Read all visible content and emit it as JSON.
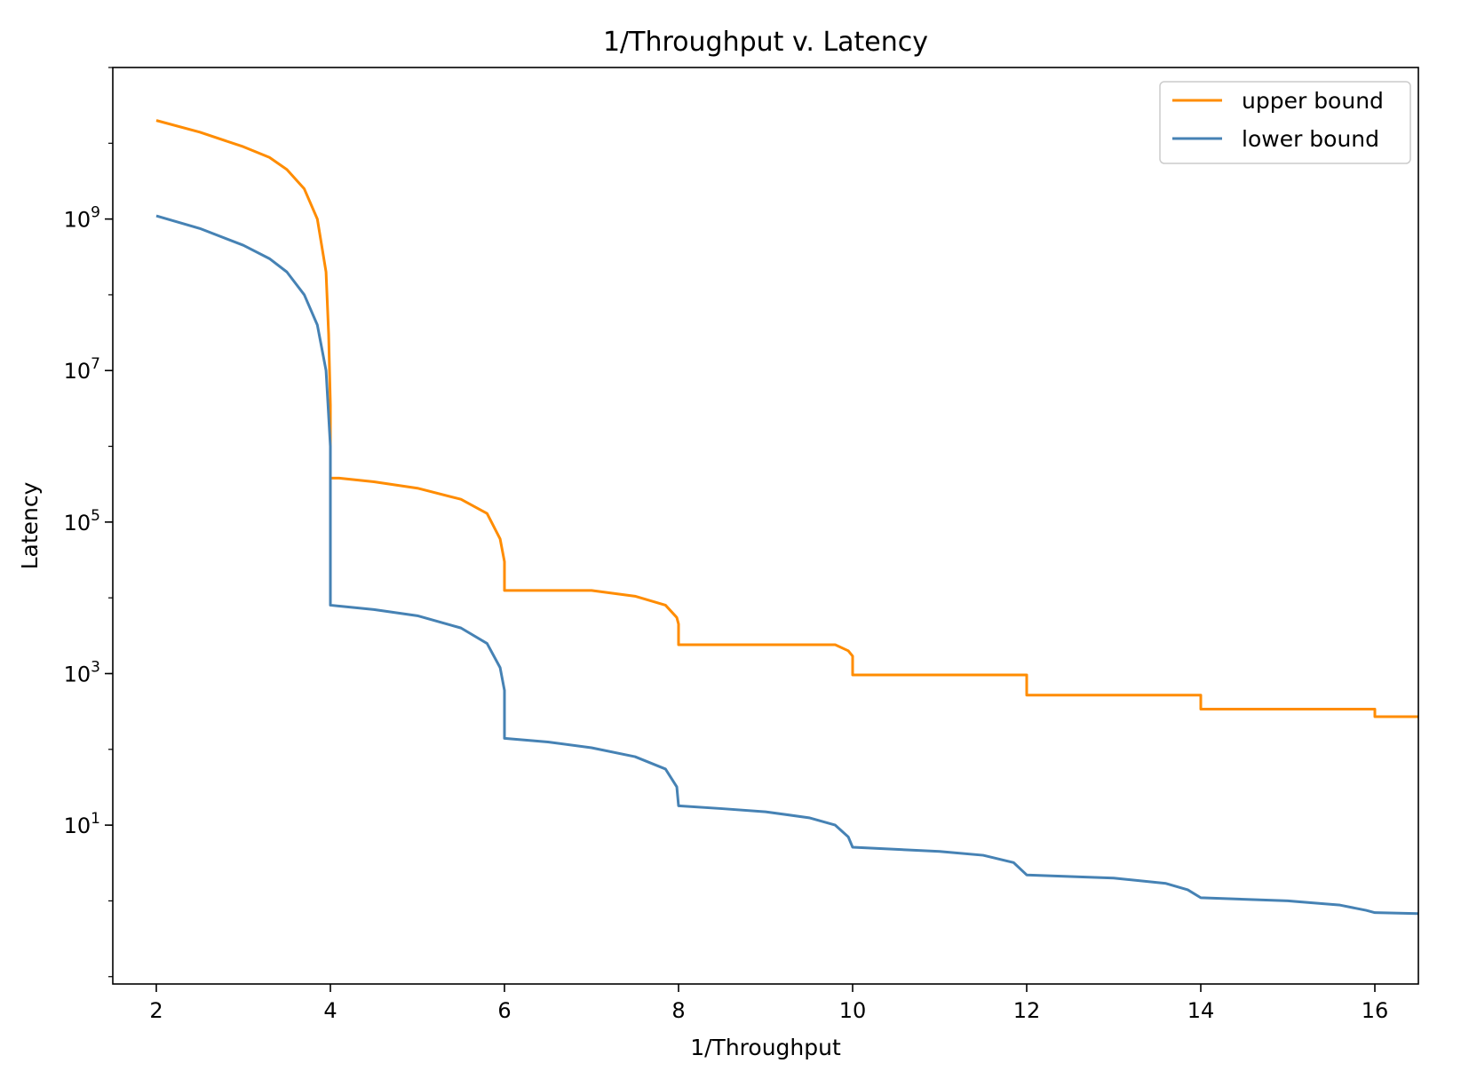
{
  "chart_data": {
    "type": "line",
    "title": "1/Throughput v. Latency",
    "xlabel": "1/Throughput",
    "ylabel": "Latency",
    "xlim": [
      1.5,
      16.5
    ],
    "ylim": [
      0.08,
      100000000000.0
    ],
    "yscale": "log",
    "xticks": [
      {
        "value": 2,
        "label": "2"
      },
      {
        "value": 4,
        "label": "4"
      },
      {
        "value": 6,
        "label": "6"
      },
      {
        "value": 8,
        "label": "8"
      },
      {
        "value": 10,
        "label": "10"
      },
      {
        "value": 12,
        "label": "12"
      },
      {
        "value": 14,
        "label": "14"
      },
      {
        "value": 16,
        "label": "16"
      }
    ],
    "yticks": [
      {
        "value": 10,
        "base": "10",
        "exp": "1"
      },
      {
        "value": 1000,
        "base": "10",
        "exp": "3"
      },
      {
        "value": 100000,
        "base": "10",
        "exp": "5"
      },
      {
        "value": 10000000,
        "base": "10",
        "exp": "7"
      },
      {
        "value": 1000000000,
        "base": "10",
        "exp": "9"
      }
    ],
    "grid": false,
    "legend": "top-right",
    "series": [
      {
        "name": "upper bound",
        "color": "#ff8c00",
        "points": [
          [
            2.0,
            20000000000.0
          ],
          [
            2.5,
            14000000000.0
          ],
          [
            3.0,
            9000000000.0
          ],
          [
            3.3,
            6500000000.0
          ],
          [
            3.5,
            4500000000.0
          ],
          [
            3.7,
            2500000000.0
          ],
          [
            3.85,
            1000000000.0
          ],
          [
            3.95,
            200000000.0
          ],
          [
            3.98,
            30000000.0
          ],
          [
            4.0,
            3500000.0
          ],
          [
            4.0,
            380000.0
          ],
          [
            4.1,
            380000.0
          ],
          [
            4.5,
            340000.0
          ],
          [
            5.0,
            280000.0
          ],
          [
            5.5,
            200000.0
          ],
          [
            5.8,
            130000.0
          ],
          [
            5.95,
            60000.0
          ],
          [
            6.0,
            30000.0
          ],
          [
            6.0,
            12500.0
          ],
          [
            7.0,
            12500.0
          ],
          [
            7.5,
            10500.0
          ],
          [
            7.85,
            8000.0
          ],
          [
            7.98,
            5500.0
          ],
          [
            8.0,
            4500.0
          ],
          [
            8.0,
            2400.0
          ],
          [
            9.8,
            2400.0
          ],
          [
            9.95,
            2000.0
          ],
          [
            10.0,
            1700.0
          ],
          [
            10.0,
            960
          ],
          [
            12.0,
            960
          ],
          [
            12.0,
            520
          ],
          [
            14.0,
            520
          ],
          [
            14.0,
            340
          ],
          [
            16.0,
            340
          ],
          [
            16.0,
            270
          ],
          [
            16.5,
            270
          ]
        ]
      },
      {
        "name": "lower bound",
        "color": "#4682b4",
        "points": [
          [
            2.0,
            1100000000.0
          ],
          [
            2.5,
            750000000.0
          ],
          [
            3.0,
            450000000.0
          ],
          [
            3.3,
            300000000.0
          ],
          [
            3.5,
            200000000.0
          ],
          [
            3.7,
            100000000.0
          ],
          [
            3.85,
            40000000.0
          ],
          [
            3.95,
            10000000.0
          ],
          [
            4.0,
            1000000.0
          ],
          [
            4.0,
            8000.0
          ],
          [
            4.5,
            7000.0
          ],
          [
            5.0,
            5800.0
          ],
          [
            5.5,
            4000.0
          ],
          [
            5.8,
            2500.0
          ],
          [
            5.95,
            1200.0
          ],
          [
            6.0,
            600
          ],
          [
            6.0,
            140
          ],
          [
            6.5,
            125
          ],
          [
            7.0,
            105
          ],
          [
            7.5,
            80
          ],
          [
            7.85,
            55
          ],
          [
            7.98,
            32
          ],
          [
            8.0,
            18
          ],
          [
            8.5,
            16.5
          ],
          [
            9.0,
            15
          ],
          [
            9.5,
            12.5
          ],
          [
            9.8,
            10
          ],
          [
            9.95,
            7
          ],
          [
            10.0,
            5.1
          ],
          [
            11.0,
            4.5
          ],
          [
            11.5,
            4.0
          ],
          [
            11.85,
            3.2
          ],
          [
            12.0,
            2.2
          ],
          [
            13.0,
            2.0
          ],
          [
            13.6,
            1.7
          ],
          [
            13.85,
            1.4
          ],
          [
            14.0,
            1.1
          ],
          [
            15.0,
            1.0
          ],
          [
            15.6,
            0.88
          ],
          [
            15.9,
            0.75
          ],
          [
            16.0,
            0.7
          ],
          [
            16.5,
            0.68
          ]
        ]
      }
    ]
  }
}
